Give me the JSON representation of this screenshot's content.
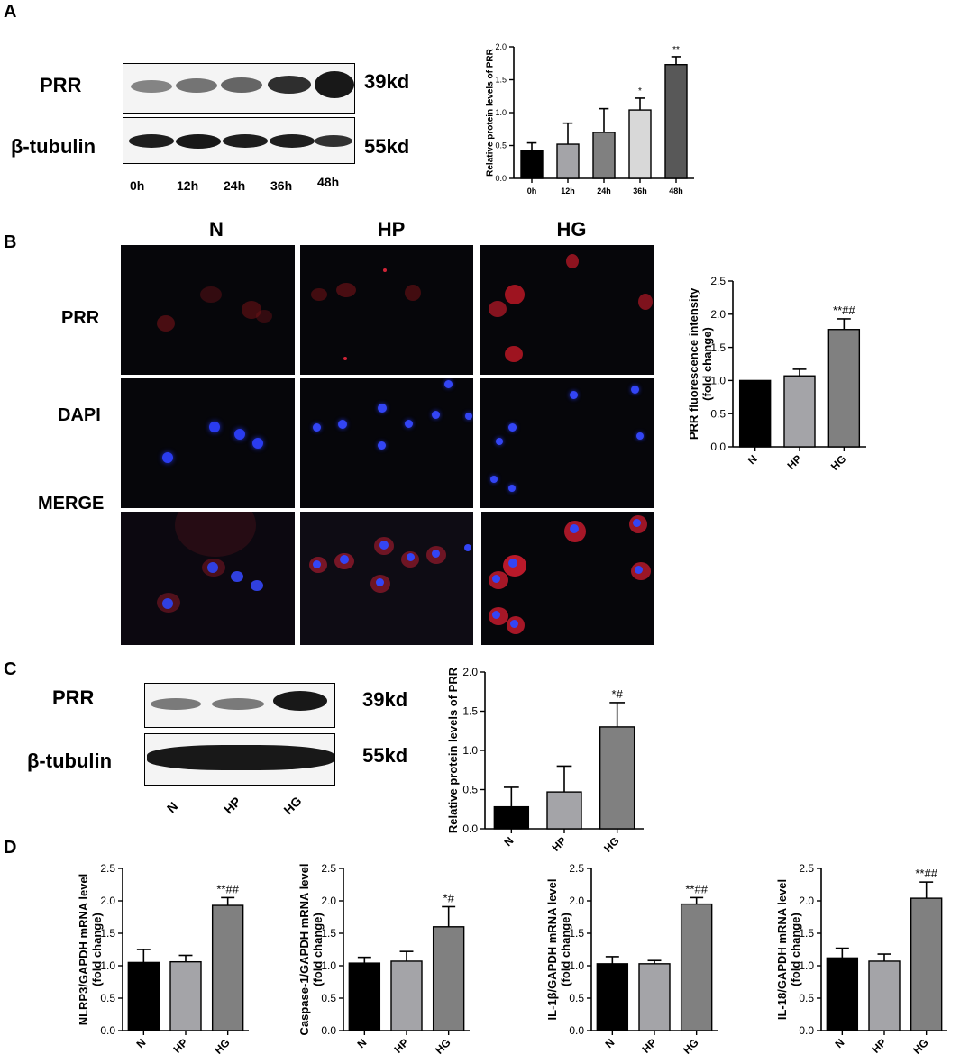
{
  "panels": {
    "a": "A",
    "b": "B",
    "c": "C",
    "d": "D"
  },
  "panel_a": {
    "blot_labels": [
      "PRR",
      "β-tubulin"
    ],
    "kd_labels": [
      "39kd",
      "55kd"
    ],
    "lanes": [
      "0h",
      "12h",
      "24h",
      "36h",
      "48h"
    ]
  },
  "panel_b": {
    "columns": [
      "N",
      "HP",
      "HG"
    ],
    "rows": [
      "PRR",
      "DAPI",
      "MERGE"
    ]
  },
  "panel_c": {
    "blot_labels": [
      "PRR",
      "β-tubulin"
    ],
    "kd_labels": [
      "39kd",
      "55kd"
    ],
    "lanes": [
      "N",
      "HP",
      "HG"
    ]
  },
  "chart_data": [
    {
      "id": "A",
      "type": "bar",
      "categories": [
        "0h",
        "12h",
        "24h",
        "36h",
        "48h"
      ],
      "values": [
        0.42,
        0.52,
        0.7,
        1.04,
        1.73
      ],
      "errors": [
        0.12,
        0.32,
        0.36,
        0.18,
        0.12
      ],
      "annotations": [
        "",
        "",
        "",
        "*",
        "**"
      ],
      "colors": [
        "#000000",
        "#a4a4a8",
        "#808080",
        "#d8d8d8",
        "#585858"
      ],
      "title": "",
      "xlabel": "",
      "ylabel_lines": [
        "Relative protein levels of PRR"
      ],
      "ylim": [
        0,
        2.0
      ],
      "yticks": [
        "0.0",
        "0.5",
        "1.0",
        "1.5",
        "2.0"
      ]
    },
    {
      "id": "B",
      "type": "bar",
      "categories": [
        "N",
        "HP",
        "HG"
      ],
      "values": [
        1.0,
        1.07,
        1.77
      ],
      "errors": [
        0.0,
        0.1,
        0.16
      ],
      "annotations": [
        "",
        "",
        "**##"
      ],
      "colors": [
        "#000000",
        "#a4a4a8",
        "#808080"
      ],
      "title": "",
      "xlabel": "",
      "ylabel_lines": [
        "PRR fluorescence intensity",
        "(fold change)"
      ],
      "ylim": [
        0,
        2.5
      ],
      "yticks": [
        "0.0",
        "0.5",
        "1.0",
        "1.5",
        "2.0",
        "2.5"
      ]
    },
    {
      "id": "C",
      "type": "bar",
      "categories": [
        "N",
        "HP",
        "HG"
      ],
      "values": [
        0.28,
        0.47,
        1.3
      ],
      "errors": [
        0.25,
        0.33,
        0.31
      ],
      "annotations": [
        "",
        "",
        "*#"
      ],
      "colors": [
        "#000000",
        "#a4a4a8",
        "#808080"
      ],
      "title": "",
      "xlabel": "",
      "ylabel_lines": [
        "Relative protein levels of PRR"
      ],
      "ylim": [
        0,
        2.0
      ],
      "yticks": [
        "0.0",
        "0.5",
        "1.0",
        "1.5",
        "2.0"
      ]
    },
    {
      "id": "D1",
      "type": "bar",
      "categories": [
        "N",
        "HP",
        "HG"
      ],
      "values": [
        1.05,
        1.06,
        1.93
      ],
      "errors": [
        0.2,
        0.1,
        0.12
      ],
      "annotations": [
        "",
        "",
        "**##"
      ],
      "colors": [
        "#000000",
        "#a4a4a8",
        "#808080"
      ],
      "title": "",
      "xlabel": "",
      "ylabel_lines": [
        "NLRP3/GAPDH mRNA level",
        "(fold change)"
      ],
      "ylim": [
        0,
        2.5
      ],
      "yticks": [
        "0.0",
        "0.5",
        "1.0",
        "1.5",
        "2.0",
        "2.5"
      ]
    },
    {
      "id": "D2",
      "type": "bar",
      "categories": [
        "N",
        "HP",
        "HG"
      ],
      "values": [
        1.04,
        1.07,
        1.6
      ],
      "errors": [
        0.09,
        0.15,
        0.31
      ],
      "annotations": [
        "",
        "",
        "*#"
      ],
      "colors": [
        "#000000",
        "#a4a4a8",
        "#808080"
      ],
      "title": "",
      "xlabel": "",
      "ylabel_lines": [
        "Caspase-1/GAPDH mRNA level",
        "(fold change)"
      ],
      "ylim": [
        0,
        2.5
      ],
      "yticks": [
        "0.0",
        "0.5",
        "1.0",
        "1.5",
        "2.0",
        "2.5"
      ]
    },
    {
      "id": "D3",
      "type": "bar",
      "categories": [
        "N",
        "HP",
        "HG"
      ],
      "values": [
        1.03,
        1.03,
        1.95
      ],
      "errors": [
        0.11,
        0.05,
        0.1
      ],
      "annotations": [
        "",
        "",
        "**##"
      ],
      "colors": [
        "#000000",
        "#a4a4a8",
        "#808080"
      ],
      "title": "",
      "xlabel": "",
      "ylabel_lines": [
        "IL-1β/GAPDH mRNA level",
        "(fold change)"
      ],
      "ylim": [
        0,
        2.5
      ],
      "yticks": [
        "0.0",
        "0.5",
        "1.0",
        "1.5",
        "2.0",
        "2.5"
      ]
    },
    {
      "id": "D4",
      "type": "bar",
      "categories": [
        "N",
        "HP",
        "HG"
      ],
      "values": [
        1.12,
        1.07,
        2.04
      ],
      "errors": [
        0.15,
        0.11,
        0.25
      ],
      "annotations": [
        "",
        "",
        "**##"
      ],
      "colors": [
        "#000000",
        "#a4a4a8",
        "#808080"
      ],
      "title": "",
      "xlabel": "",
      "ylabel_lines": [
        "IL-18/GAPDH mRNA level",
        "(fold change)"
      ],
      "ylim": [
        0,
        2.5
      ],
      "yticks": [
        "0.0",
        "0.5",
        "1.0",
        "1.5",
        "2.0",
        "2.5"
      ]
    }
  ]
}
